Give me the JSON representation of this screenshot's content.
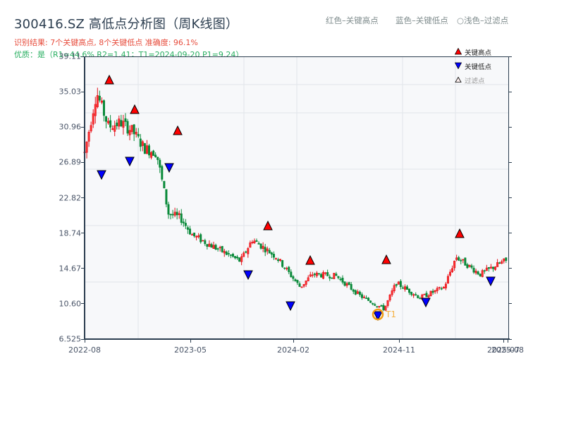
{
  "title": "300416.SZ 高低点分析图（周K线图）",
  "subtitle_result": "识别结果: 7个关键高点, 8个关键低点  准确度: 96.1%",
  "subtitle_quality": "优质：是（R1=44.6%  R2=1.41；T1=2024-09-20 P1=9.24）",
  "top_legend": {
    "red": "红色–关键高点",
    "blue": "蓝色–关键低点",
    "light": "○浅色–过滤点"
  },
  "legend": {
    "high": "关键高点",
    "low": "关键低点",
    "filtered": "过滤点"
  },
  "colors": {
    "up": "#e0101a",
    "down": "#0a8a3a",
    "high_marker": "#ff0000",
    "low_marker": "#0000ff",
    "t1_ring": "#f39c12",
    "axis": "#2c3e50",
    "grid": "#e2e5ea",
    "plot_bg": "#f7f8fa"
  },
  "annotation": {
    "label": "T1"
  },
  "chart_data": {
    "type": "candlestick",
    "title": "300416.SZ 高低点分析图（周K线图）",
    "xlabel": "",
    "ylabel": "",
    "ylim": [
      6.525,
      39.11
    ],
    "yticks": [
      "6.525",
      "10.60",
      "14.67",
      "18.74",
      "22.82",
      "26.89",
      "30.96",
      "35.03",
      "39.11"
    ],
    "xticks": [
      "2022-08",
      "2023-05",
      "2024-02",
      "2024-11",
      "2025-07",
      "2025-08"
    ],
    "grid": true,
    "legend_position": "upper right",
    "key_highs": [
      {
        "approx_date": "2022-09",
        "price": 36.2
      },
      {
        "approx_date": "2022-11",
        "price": 32.5
      },
      {
        "approx_date": "2023-02",
        "price": 29.9
      },
      {
        "approx_date": "2023-10",
        "price": 18.9
      },
      {
        "approx_date": "2024-03",
        "price": 14.9
      },
      {
        "approx_date": "2024-10",
        "price": 15.0
      },
      {
        "approx_date": "2025-03",
        "price": 18.1
      }
    ],
    "key_lows": [
      {
        "approx_date": "2022-09",
        "price": 26.3
      },
      {
        "approx_date": "2022-12",
        "price": 27.6
      },
      {
        "approx_date": "2023-02",
        "price": 26.9
      },
      {
        "approx_date": "2023-09",
        "price": 14.4
      },
      {
        "approx_date": "2024-02",
        "price": 10.6
      },
      {
        "approx_date": "2024-09-20",
        "price": 9.24,
        "label": "T1"
      },
      {
        "approx_date": "2024-12",
        "price": 10.9
      },
      {
        "approx_date": "2025-05",
        "price": 13.6
      }
    ],
    "close_path_approx": [
      [
        "2022-08",
        28.0
      ],
      [
        "2022-09",
        35.0
      ],
      [
        "2022-10",
        31.0
      ],
      [
        "2022-11",
        31.5
      ],
      [
        "2022-12",
        30.5
      ],
      [
        "2023-01",
        28.5
      ],
      [
        "2023-02",
        28.0
      ],
      [
        "2023-03",
        21.0
      ],
      [
        "2023-04",
        20.5
      ],
      [
        "2023-05",
        18.5
      ],
      [
        "2023-07",
        17.0
      ],
      [
        "2023-09",
        15.5
      ],
      [
        "2023-10",
        18.0
      ],
      [
        "2023-12",
        16.0
      ],
      [
        "2024-02",
        12.5
      ],
      [
        "2024-03",
        14.0
      ],
      [
        "2024-05",
        13.8
      ],
      [
        "2024-07",
        11.5
      ],
      [
        "2024-09",
        10.0
      ],
      [
        "2024-10",
        13.0
      ],
      [
        "2024-12",
        11.3
      ],
      [
        "2025-02",
        12.5
      ],
      [
        "2025-03",
        16.0
      ],
      [
        "2025-05",
        14.0
      ],
      [
        "2025-07",
        15.5
      ]
    ]
  }
}
